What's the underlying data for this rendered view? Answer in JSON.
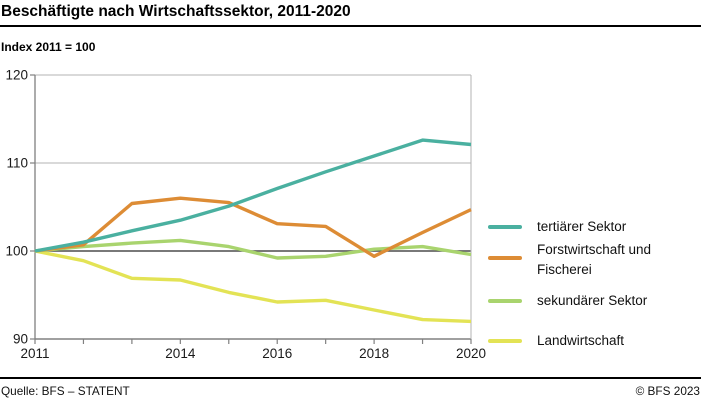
{
  "header": {
    "title": "Beschäftigte nach Wirtschaftssektor, 2011-2020",
    "subtitle": "Index 2011 = 100"
  },
  "chart_data": {
    "type": "line",
    "title": "Beschäftigte nach Wirtschaftssektor, 2011-2020",
    "index_note": "Index 2011 = 100",
    "x": [
      2011,
      2012,
      2013,
      2014,
      2015,
      2016,
      2017,
      2018,
      2019,
      2020
    ],
    "x_ticks_labeled": [
      2011,
      2014,
      2016,
      2018,
      2020
    ],
    "ylim": [
      90,
      120
    ],
    "y_ticks": [
      90,
      100,
      110,
      120
    ],
    "baseline_value": 100,
    "grid": "horizontal",
    "legend_position": "right",
    "series": [
      {
        "name": "tertiärer Sektor",
        "color": "#4ab0a0",
        "values": [
          100,
          101,
          102.3,
          103.5,
          105.1,
          107.1,
          109.0,
          110.8,
          112.6,
          112.1
        ]
      },
      {
        "name": "Forstwirtschaft und Fischerei",
        "color": "#dd8c35",
        "values": [
          100,
          100.7,
          105.4,
          106.0,
          105.5,
          103.1,
          102.8,
          99.4,
          102.1,
          104.7
        ]
      },
      {
        "name": "sekundärer Sektor",
        "color": "#a9d46e",
        "values": [
          100,
          100.5,
          100.9,
          101.2,
          100.5,
          99.2,
          99.4,
          100.2,
          100.5,
          99.6
        ]
      },
      {
        "name": "Landwirtschaft",
        "color": "#e3e355",
        "values": [
          100,
          98.9,
          96.9,
          96.7,
          95.3,
          94.2,
          94.4,
          93.3,
          92.2,
          92.0
        ]
      }
    ],
    "axis_colors": {
      "gridline": "#b3b3b3",
      "baseline": "#4d4d4d",
      "axis": "#808080"
    }
  },
  "footer": {
    "source": "Quelle: BFS – STATENT",
    "copyright": "© BFS 2023"
  }
}
